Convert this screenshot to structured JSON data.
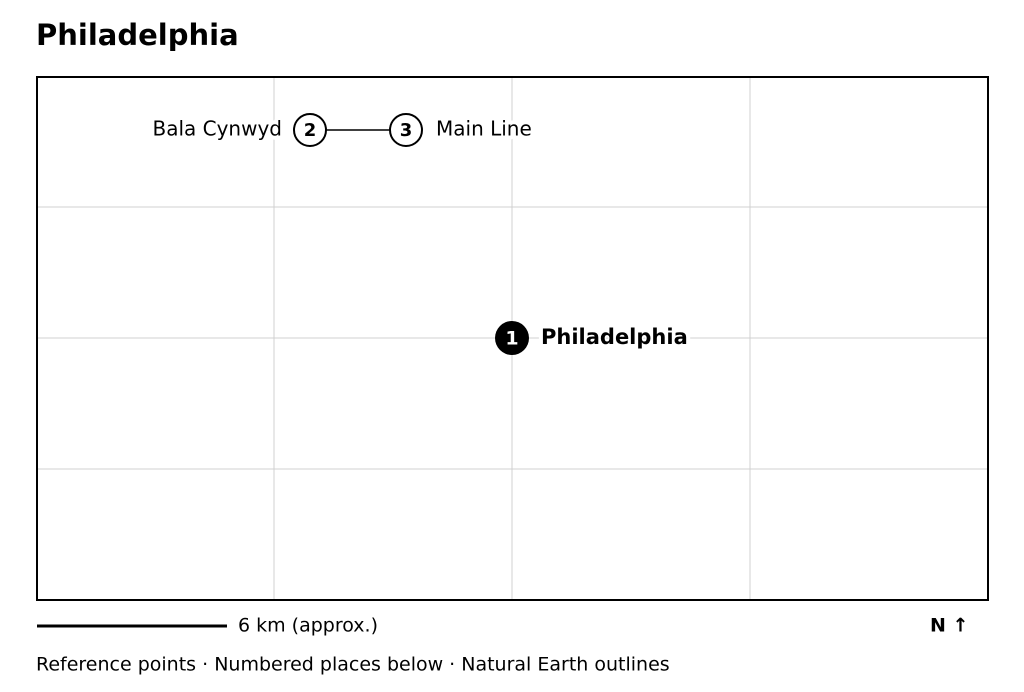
{
  "title": "Philadelphia",
  "places": [
    {
      "number": 1,
      "label": "Philadelphia"
    },
    {
      "number": 2,
      "label": "Bala Cynwyd"
    },
    {
      "number": 3,
      "label": "Main Line"
    }
  ],
  "scale_label": "6 km (approx.)",
  "north": "N ↑",
  "footer": "Reference points · Numbered places below · Natural Earth outlines"
}
